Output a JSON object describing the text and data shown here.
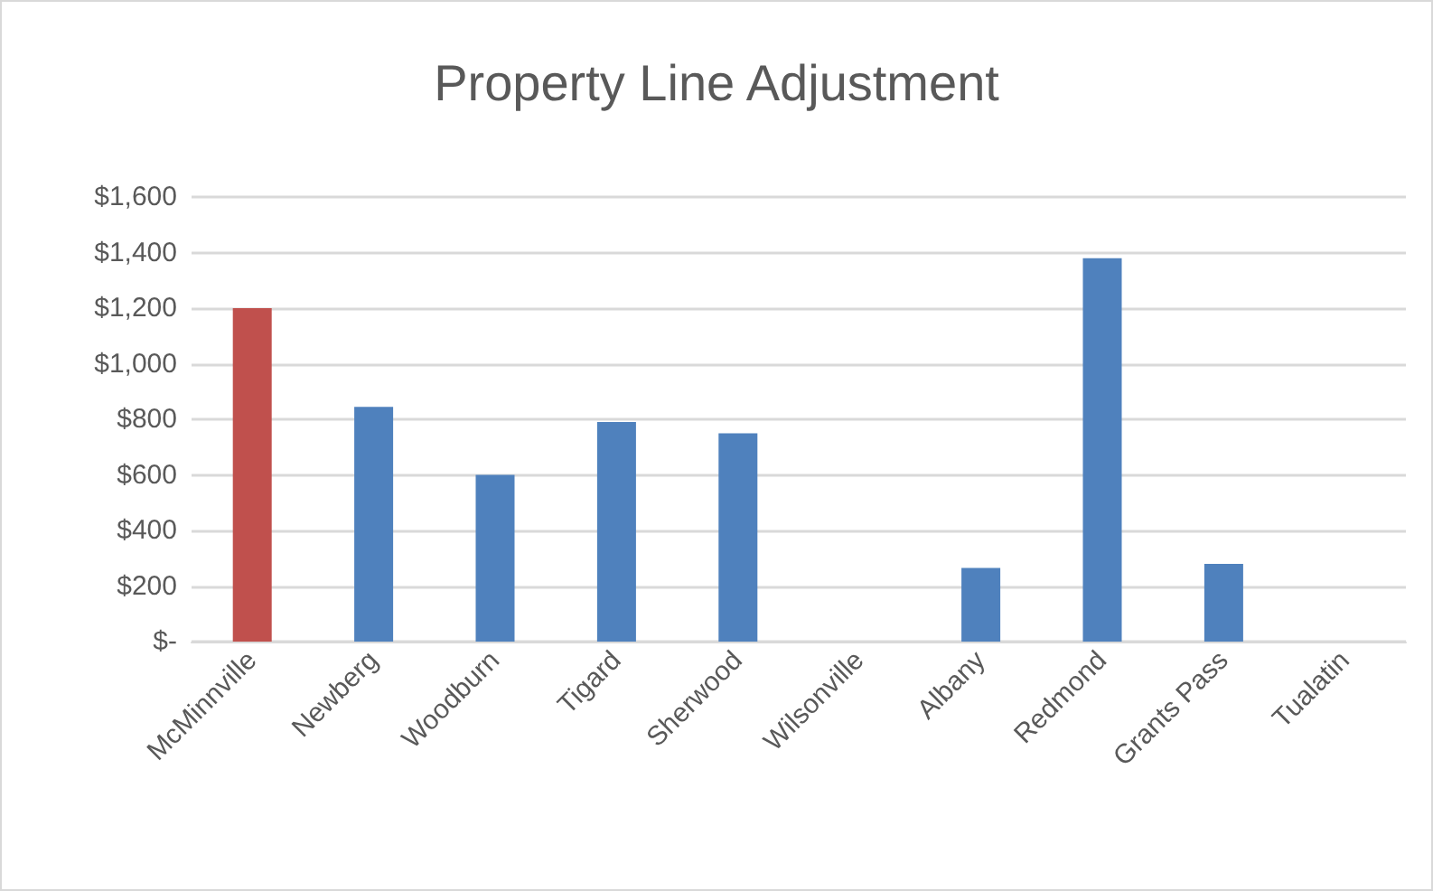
{
  "chart_data": {
    "type": "bar",
    "title": "Property Line Adjustment",
    "categories": [
      "McMinnville",
      "Newberg",
      "Woodburn",
      "Tigard",
      "Sherwood",
      "Wilsonville",
      "Albany",
      "Redmond",
      "Grants Pass",
      "Tualatin"
    ],
    "values": [
      1200,
      845,
      600,
      790,
      750,
      0,
      265,
      1380,
      280,
      0
    ],
    "colors": [
      "#c0504d",
      "#4f81bd",
      "#4f81bd",
      "#4f81bd",
      "#4f81bd",
      "#4f81bd",
      "#4f81bd",
      "#4f81bd",
      "#4f81bd",
      "#4f81bd"
    ],
    "ylim": [
      0,
      1600
    ],
    "yticks": [
      {
        "value": 0,
        "label": "$-"
      },
      {
        "value": 200,
        "label": "$200"
      },
      {
        "value": 400,
        "label": "$400"
      },
      {
        "value": 600,
        "label": "$600"
      },
      {
        "value": 800,
        "label": "$800"
      },
      {
        "value": 1000,
        "label": "$1,000"
      },
      {
        "value": 1200,
        "label": "$1,200"
      },
      {
        "value": 1400,
        "label": "$1,400"
      },
      {
        "value": 1600,
        "label": "$1,600"
      }
    ],
    "grid": "y"
  }
}
